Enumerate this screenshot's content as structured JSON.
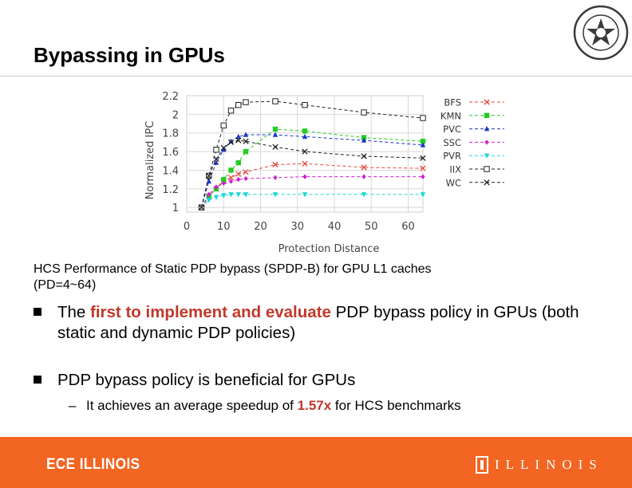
{
  "slide": {
    "title": "Bypassing in GPUs"
  },
  "caption": {
    "line1": "HCS Performance of Static PDP bypass (SPDP-B) for GPU L1 caches",
    "line2": "(PD=4~64)"
  },
  "bullets": {
    "b1_before": "The ",
    "b1_emphasis": "first to implement and evaluate",
    "b1_after": " PDP bypass policy in GPUs (both static and dynamic PDP policies)",
    "b2": "PDP bypass policy is beneficial for GPUs",
    "sub_dash": "–",
    "sub_before": "It achieves an average speedup of ",
    "sub_emphasis": "1.57x",
    "sub_after": " for HCS benchmarks"
  },
  "footer": {
    "brand": "ECE ILLINOIS",
    "university": "ILLINOIS"
  },
  "colors": {
    "footer_bg": "#f26522",
    "emphasis": "#c0392b"
  },
  "icons": {
    "university_seal": "seal-icon",
    "illinois_mark": "illinois-i-mark-icon"
  },
  "chart_data": {
    "type": "line",
    "xlabel": "Protection Distance",
    "ylabel": "Normalized IPC",
    "xlim": [
      0,
      64
    ],
    "ylim": [
      0.95,
      2.2
    ],
    "xticks": [
      "0",
      "10",
      "20",
      "30",
      "40",
      "50",
      "60"
    ],
    "yticks": [
      "1",
      "1.2",
      "1.4",
      "1.6",
      "1.8",
      "2",
      "2.2"
    ],
    "grid": true,
    "legend_position": "top-right",
    "series": [
      {
        "name": "BFS",
        "color": "#e8473a",
        "marker": "x",
        "x": [
          4,
          6,
          8,
          10,
          12,
          14,
          16,
          24,
          32,
          48,
          64
        ],
        "y": [
          1.0,
          1.12,
          1.2,
          1.28,
          1.32,
          1.36,
          1.38,
          1.46,
          1.47,
          1.43,
          1.42
        ]
      },
      {
        "name": "KMN",
        "color": "#22cc22",
        "marker": "square",
        "x": [
          4,
          6,
          8,
          10,
          12,
          14,
          16,
          24,
          32,
          48,
          64
        ],
        "y": [
          1.0,
          1.12,
          1.2,
          1.3,
          1.4,
          1.48,
          1.6,
          1.84,
          1.82,
          1.75,
          1.71
        ]
      },
      {
        "name": "PVC",
        "color": "#1c36c8",
        "marker": "triangle-up",
        "x": [
          4,
          6,
          8,
          10,
          12,
          14,
          16,
          24,
          32,
          48,
          64
        ],
        "y": [
          1.0,
          1.28,
          1.48,
          1.62,
          1.71,
          1.76,
          1.78,
          1.78,
          1.76,
          1.72,
          1.67
        ]
      },
      {
        "name": "SSC",
        "color": "#d21ad2",
        "marker": "diamond",
        "x": [
          4,
          6,
          8,
          10,
          12,
          14,
          16,
          24,
          32,
          48,
          64
        ],
        "y": [
          1.0,
          1.14,
          1.22,
          1.26,
          1.28,
          1.3,
          1.31,
          1.32,
          1.33,
          1.33,
          1.33
        ]
      },
      {
        "name": "PVR",
        "color": "#1ad7d7",
        "marker": "triangle-down",
        "x": [
          4,
          6,
          8,
          10,
          12,
          14,
          16,
          24,
          32,
          48,
          64
        ],
        "y": [
          1.0,
          1.08,
          1.11,
          1.13,
          1.14,
          1.14,
          1.14,
          1.14,
          1.14,
          1.14,
          1.14
        ]
      },
      {
        "name": "IIX",
        "color": "#222222",
        "marker": "open-square",
        "x": [
          4,
          6,
          8,
          10,
          12,
          14,
          16,
          24,
          32,
          48,
          64
        ],
        "y": [
          1.0,
          1.34,
          1.62,
          1.88,
          2.04,
          2.1,
          2.13,
          2.14,
          2.1,
          2.02,
          1.96
        ]
      },
      {
        "name": "WC",
        "color": "#222222",
        "marker": "x",
        "x": [
          4,
          6,
          8,
          10,
          12,
          14,
          16,
          24,
          32,
          48,
          64
        ],
        "y": [
          1.0,
          1.34,
          1.52,
          1.64,
          1.7,
          1.72,
          1.71,
          1.65,
          1.6,
          1.55,
          1.53
        ]
      }
    ]
  }
}
